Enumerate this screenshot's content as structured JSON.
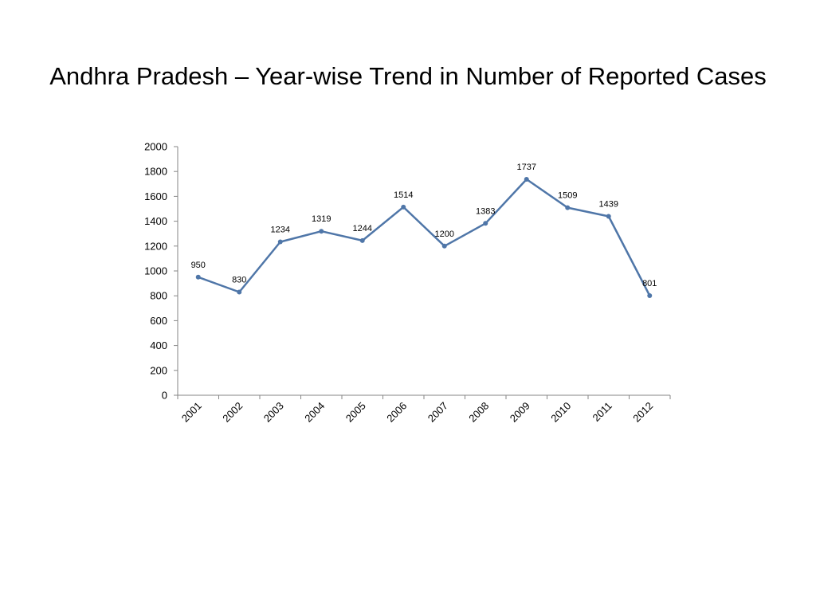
{
  "slide": {
    "title": "Andhra Pradesh – Year-wise Trend in Number of Reported Cases"
  },
  "chart_data": {
    "type": "line",
    "title": "Andhra Pradesh – Year-wise Trend in Number of Reported Cases",
    "xlabel": "",
    "ylabel": "",
    "categories": [
      "2001",
      "2002",
      "2003",
      "2004",
      "2005",
      "2006",
      "2007",
      "2008",
      "2009",
      "2010",
      "2011",
      "2012"
    ],
    "series": [
      {
        "values": [
          950,
          830,
          1234,
          1319,
          1244,
          1514,
          1200,
          1383,
          1737,
          1509,
          1439,
          801
        ],
        "color": "#4F76A8"
      }
    ],
    "ylim": [
      0,
      2000
    ],
    "yticks": [
      0,
      200,
      400,
      600,
      800,
      1000,
      1200,
      1400,
      1600,
      1800,
      2000
    ],
    "data_labels": true,
    "grid": false,
    "legend": "none"
  }
}
